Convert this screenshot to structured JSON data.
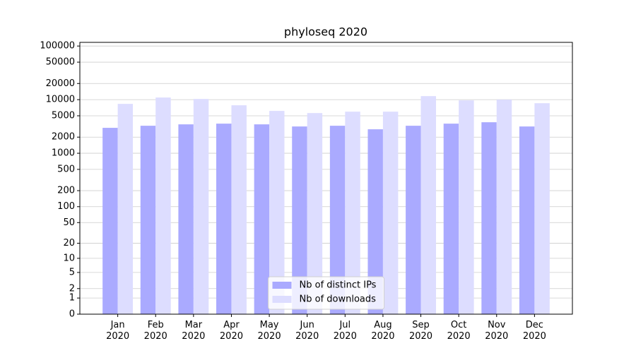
{
  "chart_data": {
    "type": "bar",
    "title": "phyloseq 2020",
    "categories": [
      "Jan\n2020",
      "Feb\n2020",
      "Mar\n2020",
      "Apr\n2020",
      "May\n2020",
      "Jun\n2020",
      "Jul\n2020",
      "Aug\n2020",
      "Sep\n2020",
      "Oct\n2020",
      "Nov\n2020",
      "Dec\n2020"
    ],
    "series": [
      {
        "name": "Nb of distinct IPs",
        "color": "#aaaaff",
        "values": [
          2980,
          3260,
          3460,
          3570,
          3460,
          3160,
          3260,
          2800,
          3260,
          3570,
          3790,
          3160
        ]
      },
      {
        "name": "Nb of downloads",
        "color": "#ddddff",
        "values": [
          8340,
          10950,
          10300,
          7850,
          6160,
          5620,
          5970,
          5970,
          11640,
          9700,
          10000,
          8590
        ]
      }
    ],
    "yscale": "log1p",
    "ylim": [
      0,
      117000
    ],
    "yticks": [
      0,
      1,
      2,
      5,
      10,
      20,
      50,
      100,
      200,
      500,
      1000,
      2000,
      5000,
      10000,
      20000,
      50000,
      100000
    ],
    "grid": true,
    "legend": "lower center"
  }
}
